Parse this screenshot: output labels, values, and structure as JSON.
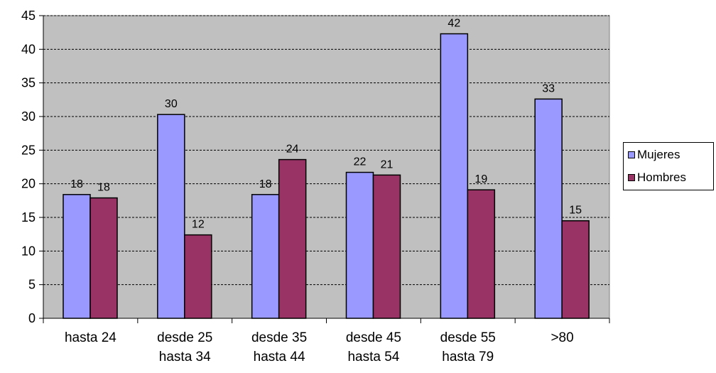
{
  "chart_data": {
    "type": "bar",
    "categories": [
      [
        "hasta 24"
      ],
      [
        "desde 25",
        "hasta 34"
      ],
      [
        "desde 35",
        "hasta 44"
      ],
      [
        "desde 45",
        "hasta 54"
      ],
      [
        "desde 55",
        "hasta 79"
      ],
      [
        ">80"
      ]
    ],
    "series": [
      {
        "name": "Mujeres",
        "color": "#9999FF",
        "values": [
          18.4,
          30.3,
          18.4,
          21.7,
          42.3,
          32.6
        ],
        "labels": [
          "18",
          "30",
          "18",
          "22",
          "42",
          "33"
        ]
      },
      {
        "name": "Hombres",
        "color": "#993366",
        "values": [
          17.9,
          12.4,
          23.6,
          21.3,
          19.1,
          14.5
        ],
        "labels": [
          "18",
          "12",
          "24",
          "21",
          "19",
          "15"
        ]
      }
    ],
    "title": "",
    "xlabel": "",
    "ylabel": "",
    "ylim": [
      0,
      45
    ],
    "yticks": [
      "0",
      "5",
      "10",
      "15",
      "20",
      "25",
      "30",
      "35",
      "40",
      "45"
    ],
    "grid": true,
    "legend_position": "right",
    "plot_background": "#C0C0C0"
  }
}
